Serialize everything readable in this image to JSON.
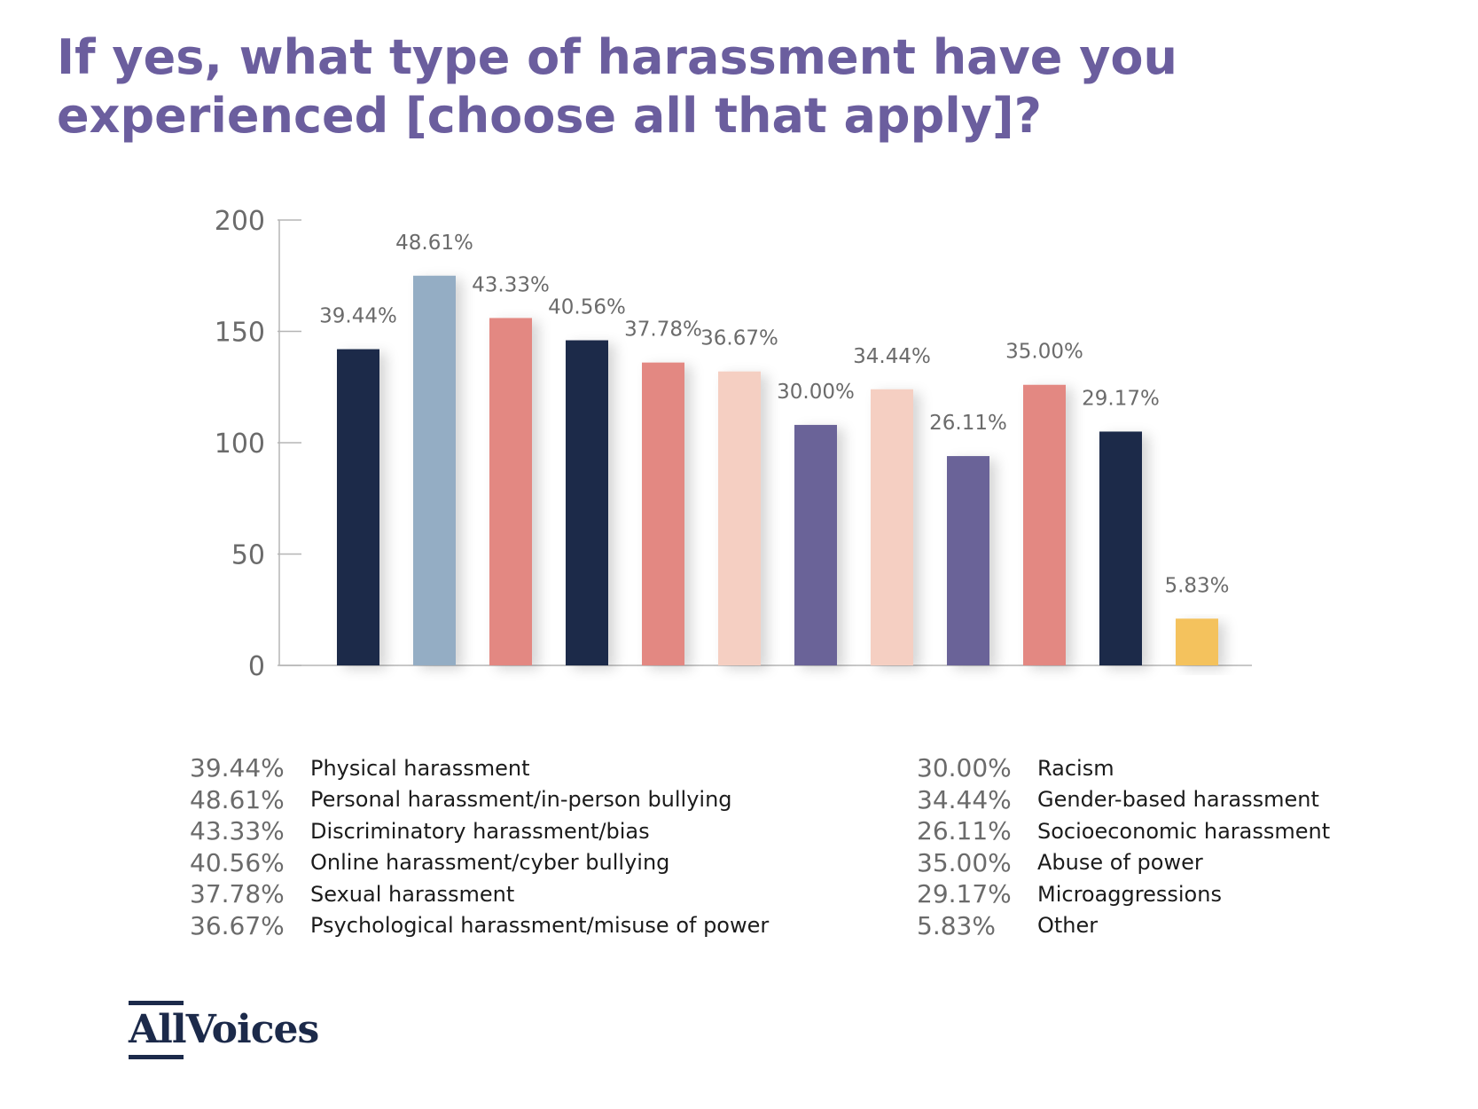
{
  "title": "If yes, what type of harassment have you experienced [choose all that apply]?",
  "chart_data": {
    "type": "bar",
    "ylim": [
      0,
      200
    ],
    "yticks": [
      0,
      50,
      100,
      150,
      200
    ],
    "categories": [
      "Physical harassment",
      "Personal harassment/in-person bullying",
      "Discriminatory harassment/bias",
      "Online harassment/cyber bullying",
      "Sexual harassment",
      "Psychological harassment/misuse of power",
      "Racism",
      "Gender-based harassment",
      "Socioeconomic harassment",
      "Abuse of power",
      "Microaggressions",
      "Other"
    ],
    "values": [
      142,
      175,
      156,
      146,
      136,
      132,
      108,
      124,
      94,
      126,
      105,
      21
    ],
    "data_labels": [
      "39.44%",
      "48.61%",
      "43.33%",
      "40.56%",
      "37.78%",
      "36.67%",
      "30.00%",
      "34.44%",
      "26.11%",
      "35.00%",
      "29.17%",
      "5.83%"
    ],
    "colors": [
      "#1c2a4a",
      "#94adc4",
      "#e38882",
      "#1c2a4a",
      "#e38882",
      "#f5cfc2",
      "#6a6498",
      "#f5cfc2",
      "#6a6498",
      "#e38882",
      "#1c2a4a",
      "#f4c25d"
    ],
    "xlabel": "",
    "ylabel": "",
    "grid": false
  },
  "legend": {
    "left": [
      {
        "pct": "39.44%",
        "label": "Physical harassment"
      },
      {
        "pct": "48.61%",
        "label": "Personal harassment/in-person bullying"
      },
      {
        "pct": "43.33%",
        "label": "Discriminatory harassment/bias"
      },
      {
        "pct": "40.56%",
        "label": "Online harassment/cyber bullying"
      },
      {
        "pct": "37.78%",
        "label": "Sexual harassment"
      },
      {
        "pct": "36.67%",
        "label": "Psychological harassment/misuse of power"
      }
    ],
    "right": [
      {
        "pct": "30.00%",
        "label": "Racism"
      },
      {
        "pct": "34.44%",
        "label": "Gender-based harassment"
      },
      {
        "pct": "26.11%",
        "label": "Socioeconomic harassment"
      },
      {
        "pct": "35.00%",
        "label": "Abuse of power"
      },
      {
        "pct": "29.17%",
        "label": "Microaggressions"
      },
      {
        "pct": "5.83%",
        "label": "Other"
      }
    ]
  },
  "logo": {
    "text": "AllVoices"
  }
}
